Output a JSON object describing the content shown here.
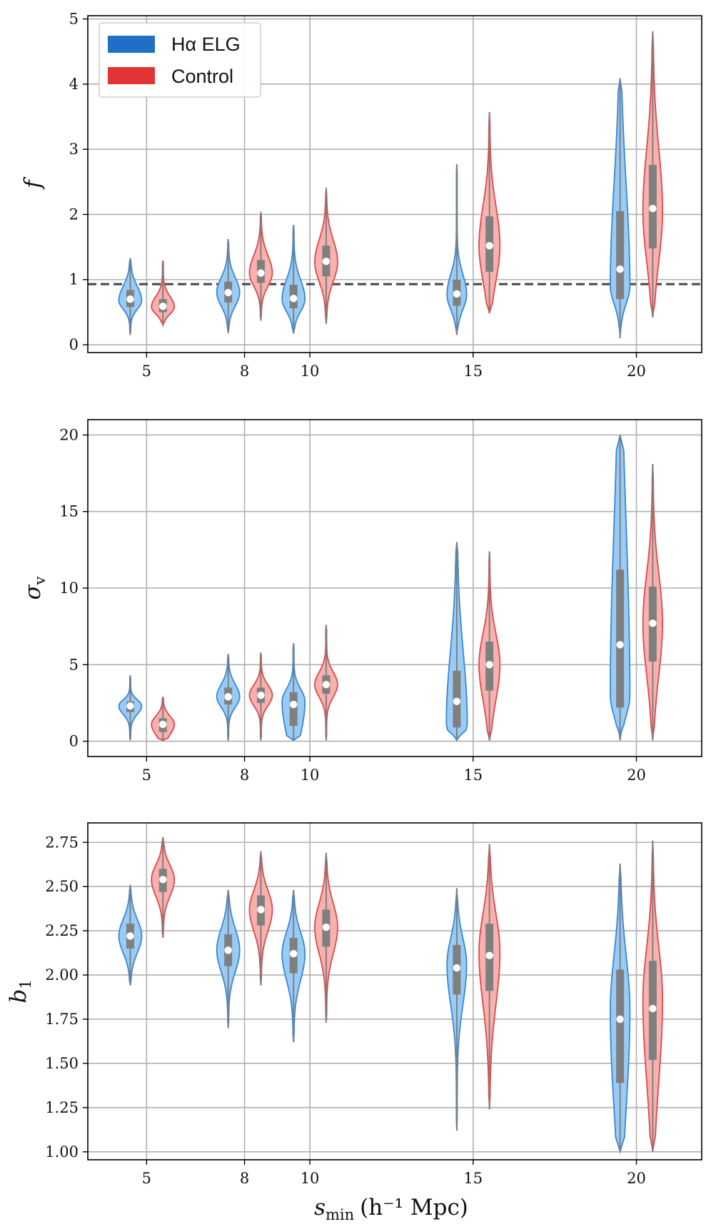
{
  "colors": {
    "elg_edge": "#3a86d4",
    "elg_fill": "#99ccf5",
    "ctrl_edge": "#e0484a",
    "ctrl_fill": "#f7b1ae",
    "legend_elg": "#1f6fc8",
    "legend_ctrl": "#e23434",
    "grid": "#b0b0b0",
    "box": "#7f7f7f",
    "reference_line": "#444444"
  },
  "legend": {
    "elg": "Hα ELG",
    "control": "Control",
    "position": "top-left"
  },
  "x_title": "s",
  "x_title_sub": "min",
  "x_title_unit": "(h⁻¹ Mpc)",
  "chart_data": [
    {
      "type": "violin",
      "name": "f",
      "ylabel": "f",
      "ylabel_sub": "",
      "ylim": [
        -0.12,
        5.05
      ],
      "yticks": [
        0,
        1,
        2,
        3,
        4,
        5
      ],
      "ytick_labels": [
        "0",
        "1",
        "2",
        "3",
        "4",
        "5"
      ],
      "xlim": [
        3.2,
        22
      ],
      "xticks": [
        5,
        8,
        10,
        15,
        20
      ],
      "xtick_labels": [
        "5",
        "8",
        "10",
        "15",
        "20"
      ],
      "reference_line": 0.93,
      "series": [
        {
          "name": "Hα ELG",
          "group": "elg",
          "violins": [
            {
              "x": 4.5,
              "min": 0.15,
              "q1": 0.58,
              "median": 0.7,
              "q3": 0.84,
              "max": 1.33,
              "width": 0.35,
              "mode": 0.68
            },
            {
              "x": 7.5,
              "min": 0.18,
              "q1": 0.65,
              "median": 0.8,
              "q3": 0.97,
              "max": 1.62,
              "width": 0.35,
              "mode": 0.8
            },
            {
              "x": 9.5,
              "min": 0.17,
              "q1": 0.56,
              "median": 0.71,
              "q3": 0.92,
              "max": 1.84,
              "width": 0.35,
              "mode": 0.7
            },
            {
              "x": 14.5,
              "min": 0.15,
              "q1": 0.6,
              "median": 0.78,
              "q3": 1.0,
              "max": 2.77,
              "width": 0.3,
              "mode": 0.77
            },
            {
              "x": 19.5,
              "min": 0.1,
              "q1": 0.7,
              "median": 1.16,
              "q3": 2.05,
              "max": 4.09,
              "width": 0.3,
              "mode": 0.9
            }
          ]
        },
        {
          "name": "Control",
          "group": "ctrl",
          "violins": [
            {
              "x": 5.5,
              "min": 0.3,
              "q1": 0.5,
              "median": 0.59,
              "q3": 0.7,
              "max": 1.29,
              "width": 0.35,
              "mode": 0.58
            },
            {
              "x": 8.5,
              "min": 0.37,
              "q1": 0.95,
              "median": 1.1,
              "q3": 1.3,
              "max": 2.04,
              "width": 0.35,
              "mode": 1.1
            },
            {
              "x": 10.5,
              "min": 0.32,
              "q1": 1.05,
              "median": 1.28,
              "q3": 1.52,
              "max": 2.41,
              "width": 0.35,
              "mode": 1.27
            },
            {
              "x": 15.5,
              "min": 0.48,
              "q1": 1.12,
              "median": 1.52,
              "q3": 1.97,
              "max": 3.57,
              "width": 0.32,
              "mode": 1.52
            },
            {
              "x": 20.5,
              "min": 0.42,
              "q1": 1.48,
              "median": 2.09,
              "q3": 2.76,
              "max": 4.81,
              "width": 0.3,
              "mode": 2.05
            }
          ]
        }
      ]
    },
    {
      "type": "violin",
      "name": "sigma_v",
      "ylabel": "σ",
      "ylabel_sub": "v",
      "ylim": [
        -1,
        21
      ],
      "yticks": [
        0,
        5,
        10,
        15,
        20
      ],
      "ytick_labels": [
        "0",
        "5",
        "10",
        "15",
        "20"
      ],
      "xlim": [
        3.2,
        22
      ],
      "xticks": [
        5,
        8,
        10,
        15,
        20
      ],
      "xtick_labels": [
        "5",
        "8",
        "10",
        "15",
        "20"
      ],
      "series": [
        {
          "name": "Hα ELG",
          "group": "elg",
          "violins": [
            {
              "x": 4.5,
              "min": 0.05,
              "q1": 1.9,
              "median": 2.3,
              "q3": 2.6,
              "max": 4.3,
              "width": 0.35,
              "mode": 2.3
            },
            {
              "x": 7.5,
              "min": 0.05,
              "q1": 2.4,
              "median": 2.9,
              "q3": 3.5,
              "max": 5.7,
              "width": 0.35,
              "mode": 2.9
            },
            {
              "x": 9.5,
              "min": 0.05,
              "q1": 1.0,
              "median": 2.4,
              "q3": 3.2,
              "max": 6.4,
              "width": 0.35,
              "mode": 2.6
            },
            {
              "x": 14.5,
              "min": 0.05,
              "q1": 0.9,
              "median": 2.6,
              "q3": 4.6,
              "max": 13.0,
              "width": 0.32,
              "mode": 1.2
            },
            {
              "x": 19.5,
              "min": 0.05,
              "q1": 2.2,
              "median": 6.3,
              "q3": 11.2,
              "max": 20.0,
              "width": 0.3,
              "mode": 3.0
            }
          ]
        },
        {
          "name": "Control",
          "group": "ctrl",
          "violins": [
            {
              "x": 5.5,
              "min": 0.05,
              "q1": 0.6,
              "median": 1.1,
              "q3": 1.5,
              "max": 2.9,
              "width": 0.35,
              "mode": 1.1
            },
            {
              "x": 8.5,
              "min": 0.05,
              "q1": 2.5,
              "median": 3.0,
              "q3": 3.5,
              "max": 5.8,
              "width": 0.35,
              "mode": 3.0
            },
            {
              "x": 10.5,
              "min": 0.05,
              "q1": 3.1,
              "median": 3.7,
              "q3": 4.3,
              "max": 7.6,
              "width": 0.35,
              "mode": 3.7
            },
            {
              "x": 15.5,
              "min": 0.05,
              "q1": 3.3,
              "median": 5.0,
              "q3": 6.5,
              "max": 12.4,
              "width": 0.32,
              "mode": 5.0
            },
            {
              "x": 20.5,
              "min": 0.05,
              "q1": 5.2,
              "median": 7.7,
              "q3": 10.1,
              "max": 18.1,
              "width": 0.3,
              "mode": 7.7
            }
          ]
        }
      ]
    },
    {
      "type": "violin",
      "name": "b1",
      "ylabel": "b",
      "ylabel_sub": "1",
      "ylim": [
        0.955,
        2.86
      ],
      "yticks": [
        1.0,
        1.25,
        1.5,
        1.75,
        2.0,
        2.25,
        2.5,
        2.75
      ],
      "ytick_labels": [
        "1.00",
        "1.25",
        "1.50",
        "1.75",
        "2.00",
        "2.25",
        "2.50",
        "2.75"
      ],
      "xlim": [
        3.2,
        22
      ],
      "xticks": [
        5,
        8,
        10,
        15,
        20
      ],
      "xtick_labels": [
        "5",
        "8",
        "10",
        "15",
        "20"
      ],
      "series": [
        {
          "name": "Hα ELG",
          "group": "elg",
          "violins": [
            {
              "x": 4.5,
              "min": 1.94,
              "q1": 2.15,
              "median": 2.22,
              "q3": 2.29,
              "max": 2.51,
              "width": 0.35,
              "mode": 2.22
            },
            {
              "x": 7.5,
              "min": 1.7,
              "q1": 2.05,
              "median": 2.14,
              "q3": 2.23,
              "max": 2.48,
              "width": 0.35,
              "mode": 2.14
            },
            {
              "x": 9.5,
              "min": 1.62,
              "q1": 2.01,
              "median": 2.12,
              "q3": 2.21,
              "max": 2.48,
              "width": 0.35,
              "mode": 2.12
            },
            {
              "x": 14.5,
              "min": 1.12,
              "q1": 1.89,
              "median": 2.04,
              "q3": 2.17,
              "max": 2.49,
              "width": 0.3,
              "mode": 2.06
            },
            {
              "x": 19.5,
              "min": 1.0,
              "q1": 1.39,
              "median": 1.75,
              "q3": 2.03,
              "max": 2.63,
              "width": 0.3,
              "mode": 1.8
            }
          ]
        },
        {
          "name": "Control",
          "group": "ctrl",
          "violins": [
            {
              "x": 5.5,
              "min": 2.21,
              "q1": 2.47,
              "median": 2.54,
              "q3": 2.6,
              "max": 2.78,
              "width": 0.35,
              "mode": 2.54
            },
            {
              "x": 8.5,
              "min": 1.94,
              "q1": 2.28,
              "median": 2.37,
              "q3": 2.45,
              "max": 2.7,
              "width": 0.35,
              "mode": 2.37
            },
            {
              "x": 10.5,
              "min": 1.73,
              "q1": 2.16,
              "median": 2.27,
              "q3": 2.37,
              "max": 2.69,
              "width": 0.35,
              "mode": 2.27
            },
            {
              "x": 15.5,
              "min": 1.24,
              "q1": 1.91,
              "median": 2.11,
              "q3": 2.29,
              "max": 2.74,
              "width": 0.32,
              "mode": 2.13
            },
            {
              "x": 20.5,
              "min": 1.0,
              "q1": 1.52,
              "median": 1.81,
              "q3": 2.08,
              "max": 2.76,
              "width": 0.3,
              "mode": 1.86
            }
          ]
        }
      ]
    }
  ]
}
